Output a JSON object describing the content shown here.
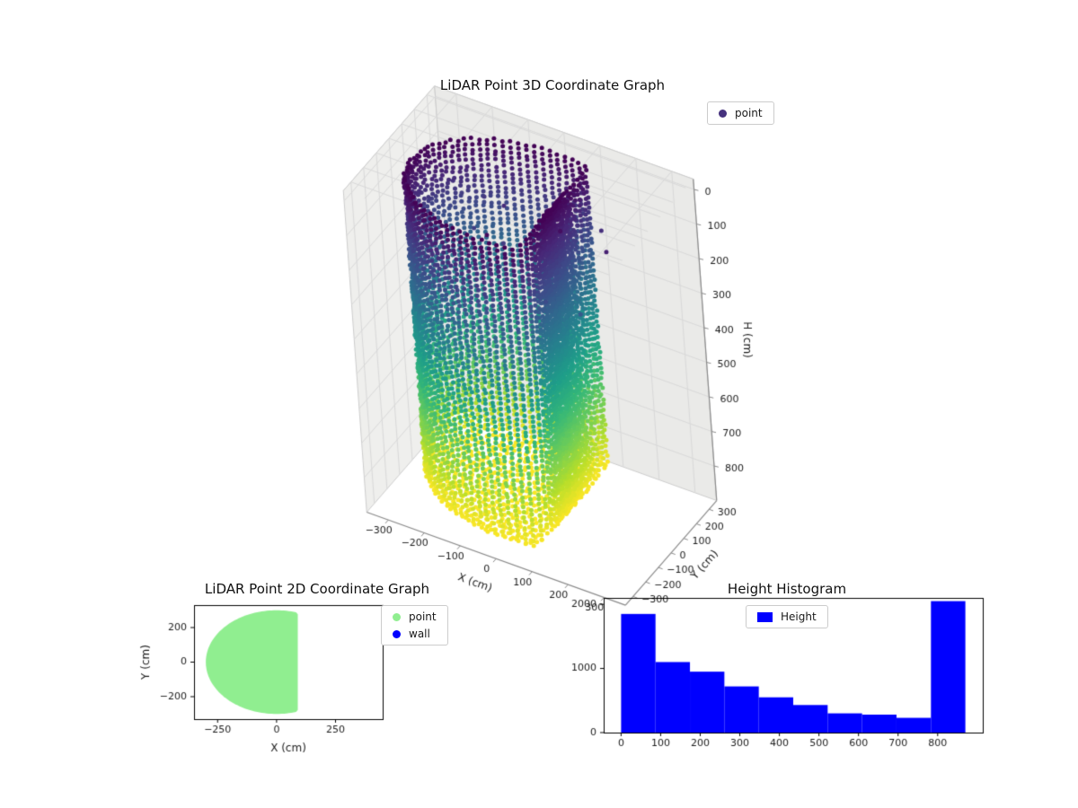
{
  "figure": {
    "background": "#ffffff"
  },
  "chart_data": [
    {
      "id": "plot3d",
      "type": "scatter",
      "projection": "3d",
      "title": "LiDAR Point 3D Coordinate Graph",
      "xlabel": "X (cm)",
      "ylabel": "Y (cm)",
      "zlabel": "H (cm)",
      "xticks": [
        -300,
        -200,
        -100,
        0,
        100,
        200,
        300
      ],
      "yticks": [
        -300,
        -200,
        -100,
        0,
        100,
        200,
        300
      ],
      "zticks": [
        0,
        100,
        200,
        300,
        400,
        500,
        600,
        700,
        800
      ],
      "xlim": [
        -360,
        360
      ],
      "ylim": [
        -360,
        360
      ],
      "zlim": [
        -30,
        900
      ],
      "zaxis_inverted": true,
      "grid": true,
      "legend": [
        {
          "label": "point",
          "color": "#46327e"
        }
      ],
      "colormap": "viridis",
      "color_encoding": "height H: 0 cm = dark purple (top rim), 870 cm = yellow (floor)",
      "point_cloud": {
        "shape": "cylindrical room wall columns plus floor disc",
        "wall_radius_cm": 300,
        "flat_wall_x_cm": 90,
        "height_range_cm": [
          0,
          870
        ],
        "wall_columns": 90,
        "wall_point_step_cm": 15,
        "floor_rings": 14,
        "noise_points_near_top": 16
      }
    },
    {
      "id": "plot2d",
      "type": "scatter",
      "title": "LiDAR Point 2D Coordinate Graph",
      "xlabel": "X (cm)",
      "ylabel": "Y (cm)",
      "xticks": [
        -250,
        0,
        250
      ],
      "yticks": [
        -200,
        0,
        200
      ],
      "xlim": [
        -350,
        450
      ],
      "ylim": [
        -330,
        330
      ],
      "legend": [
        {
          "label": "point",
          "color": "#90ee90"
        },
        {
          "label": "wall",
          "color": "#0000ff"
        }
      ],
      "region": {
        "type": "filled-disc",
        "radius_cm": 300,
        "clip_x_max_cm": 90,
        "color": "#90ee90"
      }
    },
    {
      "id": "histogram",
      "type": "bar",
      "title": "Height Histogram",
      "legend": [
        {
          "label": "Height",
          "color": "#0000ff"
        }
      ],
      "bar_color": "#0000ff",
      "bin_edges": [
        0,
        87,
        174,
        261,
        348,
        435,
        522,
        609,
        696,
        783,
        870
      ],
      "values": [
        1850,
        1100,
        950,
        720,
        550,
        430,
        300,
        280,
        230,
        2050
      ],
      "xticks": [
        0,
        100,
        200,
        300,
        400,
        500,
        600,
        700,
        800
      ],
      "yticks": [
        0,
        1000,
        2000
      ],
      "xlim": [
        -44,
        914
      ],
      "ylim": [
        0,
        2100
      ],
      "grid": false
    }
  ]
}
